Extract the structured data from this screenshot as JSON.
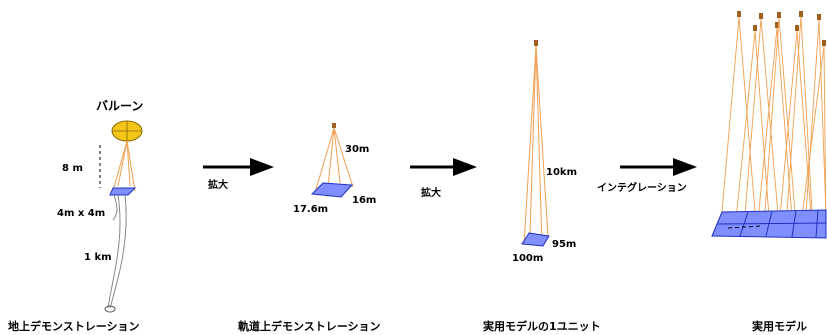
{
  "stages": {
    "ground": {
      "balloon_label": "バルーン",
      "height_label": "8 m",
      "size_label": "4m  x 4m",
      "tether_label": "1 km",
      "caption": "地上デモンストレーション"
    },
    "orbit": {
      "height_label": "30m",
      "side_a_label": "16m",
      "side_b_label": "17.6m",
      "caption": "軌道上デモンストレーション"
    },
    "unit": {
      "height_label": "10km",
      "side_a_label": "95m",
      "side_b_label": "100m",
      "caption": "実用モデルの1ユニット"
    },
    "full": {
      "caption": "実用モデル"
    }
  },
  "arrows": {
    "first": "拡大",
    "second": "拡大",
    "third": "インテグレーション"
  },
  "colors": {
    "balloon": "#f5c518",
    "cable": "#f0a050",
    "panel": "#7f8fff",
    "panel_edge": "#2030c0",
    "arrow": "#000000"
  }
}
